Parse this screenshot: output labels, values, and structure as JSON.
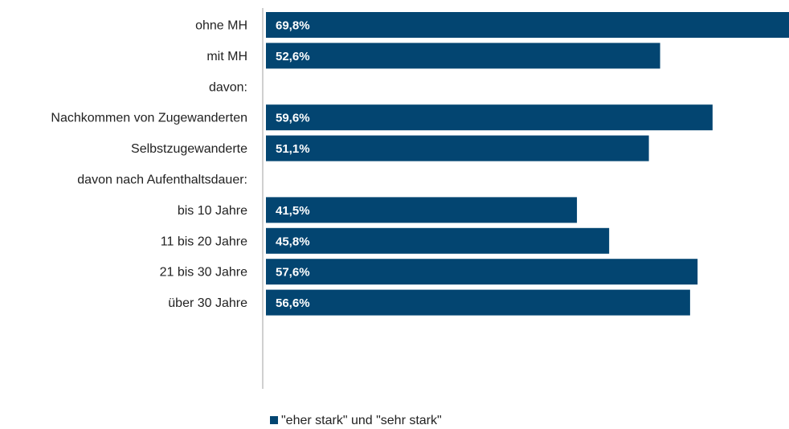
{
  "chart_data": {
    "type": "bar",
    "orientation": "horizontal",
    "categories": [
      "ohne MH",
      "mit MH",
      "davon:",
      "Nachkommen von Zugewanderten",
      "Selbstzugewanderte",
      "davon nach Aufenthaltsdauer:",
      "bis 10 Jahre",
      "11 bis 20 Jahre",
      "21 bis 30 Jahre",
      "über 30 Jahre"
    ],
    "series": [
      {
        "name": "\"eher stark\" und \"sehr stark\"",
        "values": [
          69.8,
          52.6,
          null,
          59.6,
          51.1,
          null,
          41.5,
          45.8,
          57.6,
          56.6
        ],
        "labels": [
          "69,8%",
          "52,6%",
          "",
          "59,6%",
          "51,1%",
          "",
          "41,5%",
          "45,8%",
          "57,6%",
          "56,6%"
        ]
      }
    ],
    "xlim": [
      0,
      69.8
    ],
    "grid": false,
    "legend_position": "bottom",
    "colors": {
      "bar": "#034571",
      "axis": "#d0d0d0"
    }
  }
}
